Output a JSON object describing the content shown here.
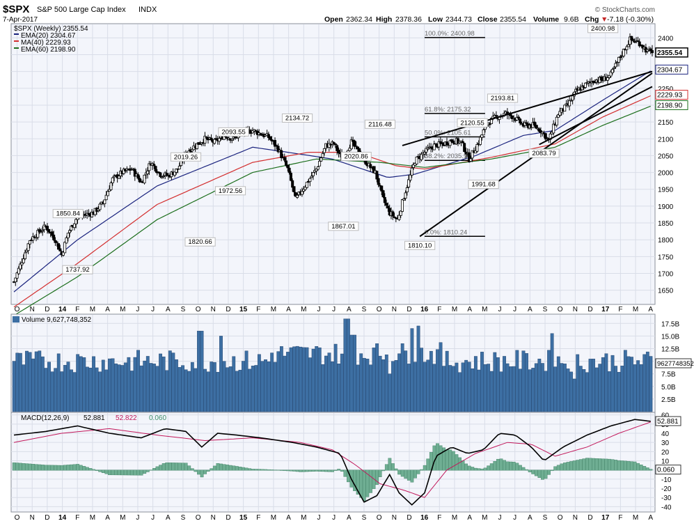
{
  "header": {
    "symbol": "$SPX",
    "name": "S&P 500 Large Cap Index",
    "exchange": "INDX",
    "date": "7-Apr-2017",
    "brand": "© StockCharts.com",
    "open_label": "Open",
    "open": "2362.34",
    "high_label": "High",
    "high": "2378.36",
    "low_label": "Low",
    "low": "2344.73",
    "close_label": "Close",
    "close": "2355.54",
    "volume_label": "Volume",
    "volume": "9.6B",
    "chg_label": "Chg",
    "chg": "-7.18 (-0.30%)",
    "chg_arrow": "▼"
  },
  "legend": [
    {
      "text": "$SPX (Weekly) 2355.54",
      "color": "#000000",
      "series": "price"
    },
    {
      "text": "EMA(20) 2304.67",
      "color": "#1a237e",
      "series": "ema20"
    },
    {
      "text": "MA(40) 2229.93",
      "color": "#d32f2f",
      "series": "ma40"
    },
    {
      "text": "EMA(60) 2198.90",
      "color": "#1b6e1b",
      "series": "ema60"
    }
  ],
  "colors": {
    "price": "#000000",
    "ema20": "#1a237e",
    "ma40": "#d32f2f",
    "ema60": "#1b6e1b",
    "volume_bar": "#3d6fa3",
    "macd_line": "#000000",
    "signal_line": "#c2185b",
    "histogram": "#6fae93",
    "panel_bg": "#f3f5fb",
    "grid": "#d9dde8"
  },
  "chart_data": [
    {
      "type": "candlestick",
      "title": "$SPX (Weekly) 2355.54",
      "x_axis_labels": [
        "O",
        "N",
        "D",
        "14",
        "F",
        "M",
        "A",
        "M",
        "J",
        "J",
        "A",
        "S",
        "O",
        "N",
        "D",
        "15",
        "F",
        "M",
        "A",
        "M",
        "J",
        "J",
        "A",
        "S",
        "O",
        "N",
        "D",
        "16",
        "F",
        "M",
        "A",
        "M",
        "J",
        "J",
        "A",
        "S",
        "O",
        "N",
        "D",
        "17",
        "F",
        "M",
        "A"
      ],
      "y_ticks": [
        1650,
        1700,
        1750,
        1800,
        1850,
        1900,
        1950,
        2000,
        2050,
        2100,
        2150,
        2200,
        2250,
        2300,
        2350,
        2400
      ],
      "ylim": [
        1610,
        2440
      ],
      "price_path": [
        [
          0,
          1675
        ],
        [
          10,
          1800
        ],
        [
          20,
          1840
        ],
        [
          26,
          1800
        ],
        [
          30,
          1755
        ],
        [
          34,
          1820
        ],
        [
          40,
          1870
        ],
        [
          50,
          1880
        ],
        [
          56,
          1910
        ],
        [
          62,
          1980
        ],
        [
          68,
          2000
        ],
        [
          74,
          2010
        ],
        [
          80,
          1970
        ],
        [
          86,
          2030
        ],
        [
          92,
          1995
        ],
        [
          97,
          1990
        ],
        [
          103,
          2010
        ],
        [
          108,
          2060
        ],
        [
          114,
          2080
        ],
        [
          120,
          2100
        ],
        [
          126,
          2090
        ],
        [
          132,
          2110
        ],
        [
          138,
          2100
        ],
        [
          144,
          2120
        ],
        [
          150,
          2125
        ],
        [
          155,
          2115
        ],
        [
          160,
          2105
        ],
        [
          166,
          2070
        ],
        [
          172,
          2010
        ],
        [
          177,
          1920
        ],
        [
          182,
          1955
        ],
        [
          190,
          2010
        ],
        [
          196,
          2080
        ],
        [
          201,
          2085
        ],
        [
          206,
          2040
        ],
        [
          212,
          2090
        ],
        [
          218,
          2050
        ],
        [
          223,
          2020
        ],
        [
          227,
          2000
        ],
        [
          232,
          1920
        ],
        [
          236,
          1880
        ],
        [
          241,
          1860
        ],
        [
          246,
          1945
        ],
        [
          252,
          2035
        ],
        [
          258,
          2060
        ],
        [
          264,
          2080
        ],
        [
          270,
          2085
        ],
        [
          275,
          2095
        ],
        [
          281,
          2090
        ],
        [
          286,
          2040
        ],
        [
          292,
          2090
        ],
        [
          297,
          2145
        ],
        [
          303,
          2165
        ],
        [
          309,
          2175
        ],
        [
          314,
          2165
        ],
        [
          320,
          2140
        ],
        [
          326,
          2140
        ],
        [
          331,
          2125
        ],
        [
          336,
          2095
        ],
        [
          342,
          2175
        ],
        [
          348,
          2200
        ],
        [
          353,
          2240
        ],
        [
          359,
          2260
        ],
        [
          365,
          2275
        ],
        [
          370,
          2275
        ],
        [
          375,
          2290
        ],
        [
          381,
          2345
        ],
        [
          387,
          2395
        ],
        [
          393,
          2385
        ],
        [
          398,
          2360
        ],
        [
          401,
          2355
        ]
      ],
      "ohlc_last": {
        "open": 2362.34,
        "high": 2378.36,
        "low": 2344.73,
        "close": 2355.54
      },
      "ma_path": {
        "ema20": [
          [
            0,
            1645
          ],
          [
            40,
            1800
          ],
          [
            90,
            1960
          ],
          [
            150,
            2075
          ],
          [
            172,
            2060
          ],
          [
            200,
            2040
          ],
          [
            235,
            1985
          ],
          [
            252,
            1995
          ],
          [
            290,
            2050
          ],
          [
            320,
            2110
          ],
          [
            340,
            2125
          ],
          [
            370,
            2215
          ],
          [
            401,
            2304.67
          ]
        ],
        "ma40": [
          [
            0,
            1600
          ],
          [
            40,
            1730
          ],
          [
            90,
            1905
          ],
          [
            150,
            2030
          ],
          [
            185,
            2060
          ],
          [
            215,
            2060
          ],
          [
            240,
            2020
          ],
          [
            258,
            2010
          ],
          [
            300,
            2045
          ],
          [
            340,
            2085
          ],
          [
            370,
            2165
          ],
          [
            401,
            2229.93
          ]
        ],
        "ema60": [
          [
            0,
            1575
          ],
          [
            40,
            1690
          ],
          [
            90,
            1860
          ],
          [
            150,
            2000
          ],
          [
            190,
            2040
          ],
          [
            230,
            2030
          ],
          [
            258,
            2015
          ],
          [
            300,
            2040
          ],
          [
            340,
            2075
          ],
          [
            370,
            2140
          ],
          [
            401,
            2198.9
          ]
        ]
      },
      "annotations": [
        {
          "text": "1850.84",
          "x": 34,
          "y": 1850.84,
          "pos": "above"
        },
        {
          "text": "1737.92",
          "x": 40,
          "y": 1737.92,
          "pos": "below"
        },
        {
          "text": "2019.26",
          "x": 108,
          "y": 2019.26,
          "pos": "above"
        },
        {
          "text": "1820.66",
          "x": 117,
          "y": 1820.66,
          "pos": "below"
        },
        {
          "text": "2093.55",
          "x": 138,
          "y": 2093.55,
          "pos": "above"
        },
        {
          "text": "1972.56",
          "x": 136,
          "y": 1972.56,
          "pos": "below"
        },
        {
          "text": "2134.72",
          "x": 178,
          "y": 2134.72,
          "pos": "above"
        },
        {
          "text": "2020.86",
          "x": 215,
          "y": 2020.86,
          "pos": "above"
        },
        {
          "text": "1867.01",
          "x": 207,
          "y": 1867.01,
          "pos": "below"
        },
        {
          "text": "2116.48",
          "x": 230,
          "y": 2116.48,
          "pos": "above"
        },
        {
          "text": "1810.10",
          "x": 255,
          "y": 1810.1,
          "pos": "below"
        },
        {
          "text": "2120.55",
          "x": 288,
          "y": 2120.55,
          "pos": "above"
        },
        {
          "text": "1991.68",
          "x": 295,
          "y": 1991.68,
          "pos": "below"
        },
        {
          "text": "2193.81",
          "x": 307,
          "y": 2193.81,
          "pos": "above"
        },
        {
          "text": "2083.79",
          "x": 333,
          "y": 2083.79,
          "pos": "below"
        },
        {
          "text": "2400.98",
          "x": 370,
          "y": 2400.98,
          "pos": "above"
        }
      ],
      "fib_levels": [
        {
          "text": "100.0%: 2400.98",
          "value": 2400.98
        },
        {
          "text": "61.8%: 2175.32",
          "value": 2175.32
        },
        {
          "text": "50.0%: 2105.61",
          "value": 2105.61
        },
        {
          "text": "38.2%: 2035.90",
          "value": 2035.9
        },
        {
          "text": "0.0%: 1810.24",
          "value": 1810.24
        }
      ],
      "trendlines": [
        {
          "from": [
            244,
            2080
          ],
          "to": [
            401,
            2300
          ]
        },
        {
          "from": [
            255,
            1810
          ],
          "to": [
            401,
            2295
          ]
        },
        {
          "from": [
            330,
            2083
          ],
          "to": [
            401,
            2255
          ]
        }
      ],
      "right_labels": [
        {
          "text": "2355.54",
          "value": 2355.54,
          "series": "price"
        },
        {
          "text": "2304.67",
          "value": 2304.67,
          "series": "ema20"
        },
        {
          "text": "2229.93",
          "value": 2229.93,
          "series": "ma40"
        },
        {
          "text": "2198.90",
          "value": 2198.9,
          "series": "ema60"
        }
      ]
    },
    {
      "type": "bar",
      "title": "Volume 9,627,748,352",
      "y_ticks": [
        2.5,
        5.0,
        7.5,
        10.0,
        12.5,
        15.0,
        17.5
      ],
      "y_tick_labels": [
        "2.5B",
        "5.0B",
        "7.5B",
        "10.0B",
        "12.5B",
        "15.0B",
        "17.5B"
      ],
      "ylim": [
        0,
        19.2
      ],
      "unit": "B",
      "last_value_label": "9627748352",
      "baseline": 10.0,
      "notable": [
        {
          "x": 117,
          "value": 16.0
        },
        {
          "x": 130,
          "value": 15.0
        },
        {
          "x": 209,
          "value": 18.4
        },
        {
          "x": 213,
          "value": 15.2
        },
        {
          "x": 236,
          "value": 7.5
        },
        {
          "x": 250,
          "value": 16.5
        },
        {
          "x": 254,
          "value": 17.0
        },
        {
          "x": 338,
          "value": 15.5
        },
        {
          "x": 352,
          "value": 6.5
        }
      ]
    },
    {
      "type": "line",
      "title": "MACD(12,26,9)",
      "series": [
        {
          "name": "MACD",
          "value_label": "52.881",
          "last": 52.881
        },
        {
          "name": "Signal",
          "value_label": "52.822",
          "last": 52.822
        },
        {
          "name": "Histogram",
          "value_label": "0.060",
          "last": 0.06
        }
      ],
      "y_ticks": [
        -40,
        -30,
        -20,
        -10,
        0,
        10,
        20,
        30,
        40,
        50,
        60
      ],
      "ylim": [
        -45,
        62
      ],
      "right_labels": [
        "52.881",
        "0.060"
      ],
      "macd_path": [
        [
          0,
          38
        ],
        [
          20,
          42
        ],
        [
          40,
          48
        ],
        [
          60,
          40
        ],
        [
          80,
          35
        ],
        [
          95,
          45
        ],
        [
          108,
          42
        ],
        [
          118,
          25
        ],
        [
          128,
          40
        ],
        [
          140,
          38
        ],
        [
          155,
          35
        ],
        [
          175,
          30
        ],
        [
          190,
          25
        ],
        [
          205,
          18
        ],
        [
          212,
          -10
        ],
        [
          220,
          -35
        ],
        [
          228,
          -28
        ],
        [
          236,
          -5
        ],
        [
          242,
          -25
        ],
        [
          250,
          -38
        ],
        [
          258,
          -25
        ],
        [
          265,
          15
        ],
        [
          275,
          25
        ],
        [
          285,
          18
        ],
        [
          295,
          22
        ],
        [
          305,
          40
        ],
        [
          315,
          38
        ],
        [
          325,
          25
        ],
        [
          333,
          10
        ],
        [
          345,
          25
        ],
        [
          360,
          38
        ],
        [
          375,
          48
        ],
        [
          390,
          55
        ],
        [
          401,
          52.881
        ]
      ],
      "signal_path": [
        [
          0,
          30
        ],
        [
          30,
          40
        ],
        [
          60,
          45
        ],
        [
          90,
          38
        ],
        [
          120,
          32
        ],
        [
          150,
          35
        ],
        [
          180,
          30
        ],
        [
          200,
          22
        ],
        [
          215,
          5
        ],
        [
          230,
          -15
        ],
        [
          245,
          -22
        ],
        [
          258,
          -30
        ],
        [
          272,
          0
        ],
        [
          290,
          18
        ],
        [
          310,
          30
        ],
        [
          325,
          28
        ],
        [
          340,
          15
        ],
        [
          360,
          25
        ],
        [
          380,
          40
        ],
        [
          401,
          52.822
        ]
      ]
    }
  ]
}
